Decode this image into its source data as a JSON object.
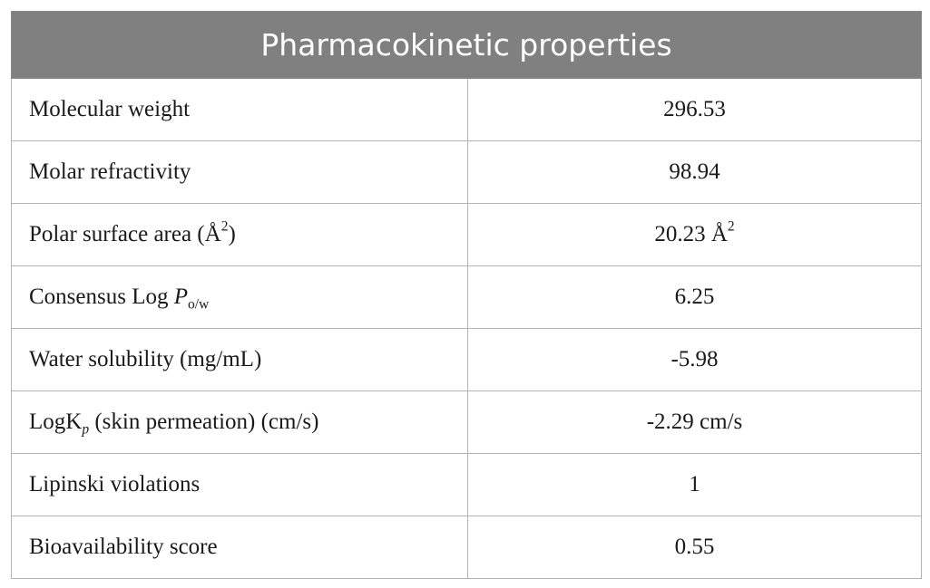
{
  "table": {
    "header": "Pharmacokinetic properties",
    "rows": [
      {
        "label": "Molecular weight",
        "value": "296.53"
      },
      {
        "label": "Molar refractivity",
        "value": "98.94"
      },
      {
        "label_main": "Polar surface area (Å",
        "label_sup": "2",
        "label_end": ")",
        "value_main": "20.23 Å",
        "value_sup": "2"
      },
      {
        "label_main": "Consensus Log ",
        "label_it": "P",
        "label_sub": "o/w",
        "value": "6.25"
      },
      {
        "label": "Water solubility (mg/mL)",
        "value": "-5.98"
      },
      {
        "label_main": "LogK",
        "label_sub": "p",
        "label_end": " (skin permeation) (cm/s)",
        "value": "-2.29 cm/s"
      },
      {
        "label": "Lipinski violations",
        "value": "1"
      },
      {
        "label": "Bioavailability score",
        "value": "0.55"
      }
    ]
  }
}
